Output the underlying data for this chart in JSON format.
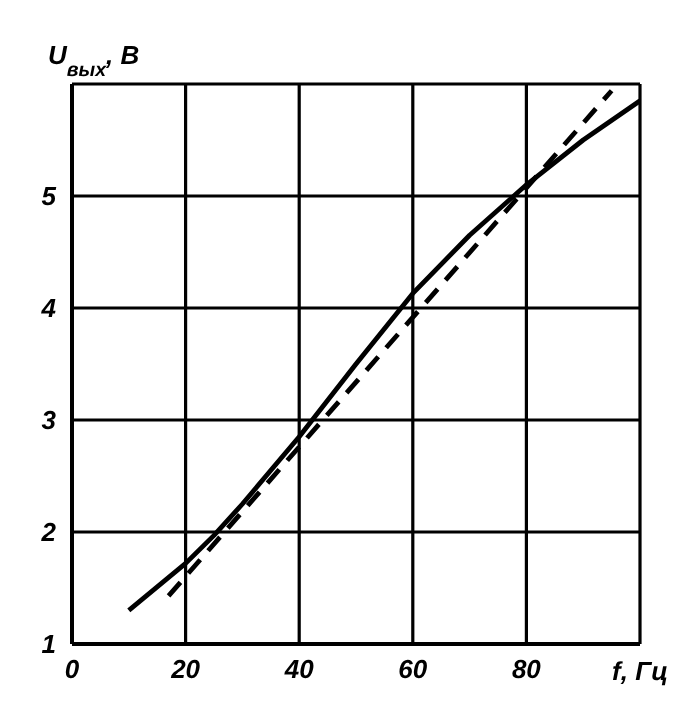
{
  "chart_data": {
    "type": "line",
    "xlabel": "f, Гц",
    "ylabel": "U$_{вых}$, В",
    "xlim": [
      0,
      100
    ],
    "ylim": [
      1,
      6
    ],
    "xticks": [
      0,
      20,
      40,
      60,
      80,
      {
        "value": 100,
        "label": null
      }
    ],
    "yticks": [
      1,
      2,
      3,
      4,
      5,
      {
        "value": 6,
        "label": null
      }
    ],
    "grid": true,
    "marker": "none",
    "series": [
      {
        "color": "#000000",
        "line_style": "solid",
        "x": [
          10,
          20,
          25,
          30,
          40,
          50,
          60,
          70,
          80,
          90,
          100
        ],
        "values": [
          1.3,
          1.72,
          1.97,
          2.25,
          2.85,
          3.5,
          4.13,
          4.65,
          5.1,
          5.5,
          5.85
        ]
      },
      {
        "color": "#000000",
        "line_style": "dashed",
        "x": [
          17,
          95
        ],
        "values": [
          1.43,
          5.94
        ]
      }
    ]
  }
}
